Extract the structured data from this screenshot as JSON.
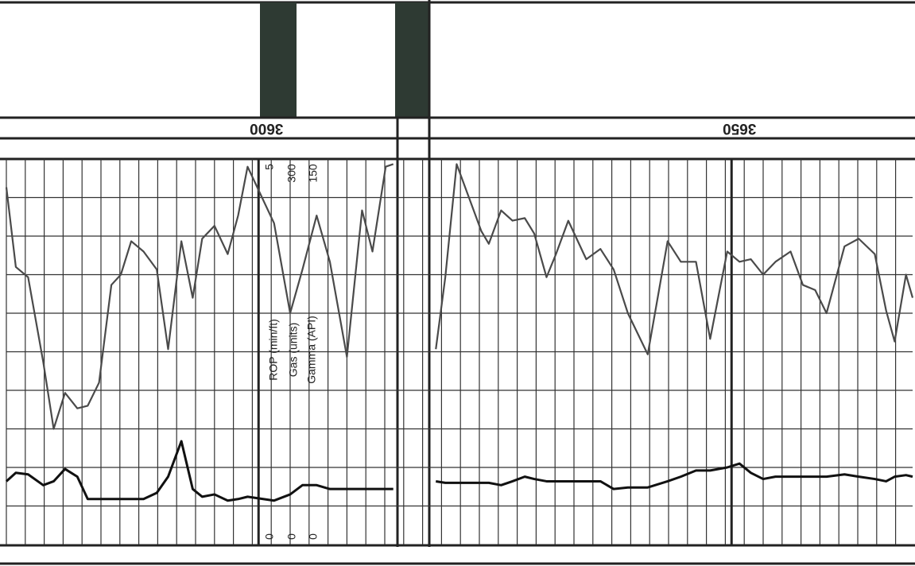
{
  "chart_data": {
    "type": "line",
    "x": [
      3572.5,
      3573.5,
      3574.8,
      3576.4,
      3577.5,
      3578.7,
      3580.0,
      3581.1,
      3582.3,
      3583.6,
      3584.6,
      3585.7,
      3587.0,
      3588.4,
      3589.6,
      3591.0,
      3592.2,
      3593.2,
      3594.5,
      3595.9,
      3597.0,
      3598.0,
      3600.8,
      3602.5,
      3603.8,
      3605.3,
      3606.7,
      3608.5,
      3610.1,
      3611.2,
      3612.6,
      3613.4,
      3615.0,
      3617.9,
      3618.9,
      3620.1,
      3621.4,
      3622.7,
      3623.5,
      3624.8,
      3626.0,
      3627.3,
      3628.3,
      3629.6,
      3630.6,
      3631.9,
      3633.8,
      3635.3,
      3636.7,
      3638.2,
      3640.3,
      3642.4,
      3643.8,
      3645.4,
      3646.9,
      3648.7,
      3650.0,
      3651.2,
      3652.5,
      3653.8,
      3655.4,
      3656.7,
      3658.0,
      3659.2,
      3661.1,
      3662.6,
      3664.3,
      3665.5,
      3666.4,
      3667.6,
      3668.3
    ],
    "series": [
      {
        "name": "Gamma (API)",
        "color": "#4a4a4a",
        "values": [
          139,
          108,
          104,
          71,
          45,
          59,
          53,
          54,
          63,
          101,
          105,
          118,
          114,
          107,
          76,
          118,
          96,
          119,
          124,
          113,
          128,
          147,
          125,
          90,
          107,
          128,
          110,
          73,
          130,
          114,
          147,
          148,
          null,
          76,
          104,
          148,
          135,
          122,
          117,
          130,
          126,
          127,
          121,
          104,
          113,
          126,
          111,
          115,
          107,
          90,
          74,
          118,
          110,
          110,
          80,
          114,
          110,
          111,
          105,
          110,
          114,
          101,
          99,
          90,
          116,
          119,
          113,
          91,
          79,
          105,
          96
        ]
      },
      {
        "name": "ROP (min/ft)",
        "color": "#111111",
        "axis": "y2",
        "values": [
          0.82,
          0.93,
          0.91,
          0.77,
          0.82,
          0.98,
          0.88,
          0.59,
          0.59,
          0.59,
          0.59,
          0.59,
          0.59,
          0.67,
          0.88,
          1.34,
          0.72,
          0.62,
          0.65,
          0.57,
          0.59,
          0.62,
          0.57,
          0.65,
          0.77,
          0.77,
          0.72,
          0.72,
          0.72,
          0.72,
          0.72,
          0.72,
          null,
          0.82,
          0.8,
          0.8,
          0.8,
          0.8,
          0.8,
          0.77,
          0.82,
          0.88,
          0.85,
          0.82,
          0.82,
          0.82,
          0.82,
          0.82,
          0.72,
          0.74,
          0.74,
          0.82,
          0.88,
          0.96,
          0.96,
          1.0,
          1.05,
          0.93,
          0.85,
          0.88,
          0.88,
          0.88,
          0.88,
          0.88,
          0.91,
          0.88,
          0.85,
          0.82,
          0.88,
          0.9,
          0.88
        ]
      }
    ],
    "gas_label": "Gas (units)",
    "gas_scale": [
      0,
      300
    ],
    "xlim": [
      3572.5,
      3668.3
    ],
    "xticks": [
      3600,
      3650
    ],
    "ylim": [
      0,
      150
    ],
    "yticks": [
      0,
      150
    ],
    "y2lim": [
      0,
      5
    ],
    "y2ticks": [
      0,
      5
    ]
  }
}
